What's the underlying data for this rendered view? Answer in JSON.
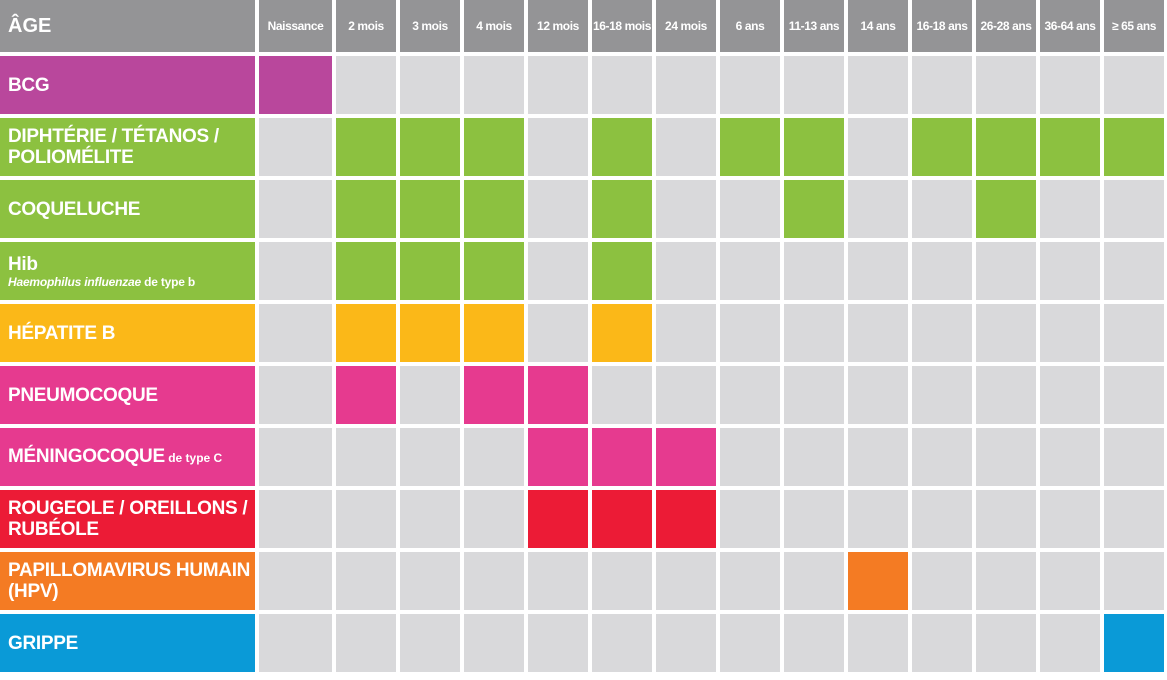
{
  "colors": {
    "bcg": "#b9479c",
    "green": "#8cc140",
    "yellow": "#fbb818",
    "pink": "#e63a8f",
    "red": "#ec1b36",
    "orange": "#f47b23",
    "blue": "#0a9ad7",
    "empty": "#d9d9db",
    "header": "#949496"
  },
  "header": {
    "age_label": "ÂGE",
    "columns": [
      "Naissance",
      "2 mois",
      "3 mois",
      "4 mois",
      "12 mois",
      "16-18 mois",
      "24 mois",
      "6 ans",
      "11-13 ans",
      "14 ans",
      "16-18 ans",
      "26-28 ans",
      "36-64 ans",
      "≥ 65 ans"
    ]
  },
  "rows": [
    {
      "id": "bcg",
      "label": "BCG",
      "color": "#b9479c",
      "filled": [
        0
      ]
    },
    {
      "id": "dtp",
      "label": "DIPHTÉRIE / TÉTANOS / POLIOMÉLITE",
      "color": "#8cc140",
      "filled": [
        1,
        2,
        3,
        5,
        7,
        8,
        10,
        11,
        12,
        13
      ]
    },
    {
      "id": "coqueluche",
      "label": "COQUELUCHE",
      "color": "#8cc140",
      "filled": [
        1,
        2,
        3,
        5,
        8,
        11
      ]
    },
    {
      "id": "hib",
      "label": "Hib",
      "sub_italic": "Haemophilus influenzae",
      "sub_text": " de type b",
      "color": "#8cc140",
      "filled": [
        1,
        2,
        3,
        5
      ]
    },
    {
      "id": "hepatite_b",
      "label": "HÉPATITE B",
      "color": "#fbb818",
      "filled": [
        1,
        2,
        3,
        5
      ]
    },
    {
      "id": "pneumocoque",
      "label": "PNEUMOCOQUE",
      "color": "#e63a8f",
      "filled": [
        1,
        3,
        4
      ]
    },
    {
      "id": "meningocoque",
      "label": "MÉNINGOCOQUE",
      "label_small": " de type C",
      "color": "#e63a8f",
      "filled": [
        4,
        5,
        6
      ]
    },
    {
      "id": "ror",
      "label": "ROUGEOLE / OREILLONS / RUBÉOLE",
      "color": "#ec1b36",
      "filled": [
        4,
        5,
        6
      ]
    },
    {
      "id": "hpv",
      "label": "PAPILLOMAVIRUS HUMAIN (HPV)",
      "color": "#f47b23",
      "filled": [
        9
      ]
    },
    {
      "id": "grippe",
      "label": "GRIPPE",
      "color": "#0a9ad7",
      "filled": [
        13
      ]
    }
  ]
}
